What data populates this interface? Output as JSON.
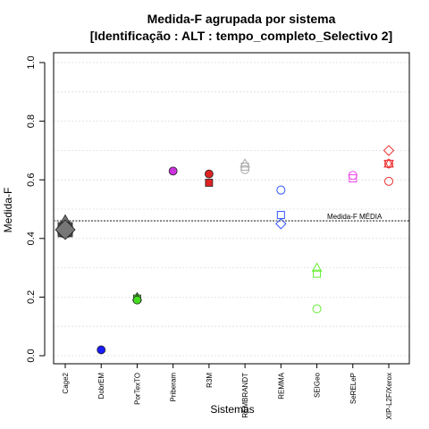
{
  "chart_data": {
    "type": "scatter",
    "title_line1": "Medida-F agrupada por sistema",
    "title_line2": "[Identificação : ALT : tempo_completo_Selectivo 2]",
    "xlabel": "Sistemas",
    "ylabel": "Medida-F",
    "ylim": [
      0,
      1
    ],
    "yticks": [
      "0.0",
      "0.2",
      "0.4",
      "0.6",
      "0.8",
      "1.0"
    ],
    "grid": true,
    "categories": [
      "Cage2",
      "DobrEM",
      "PorTexTO",
      "Priberam",
      "R3M",
      "REMBRANDT",
      "REMMA",
      "SEIGeo",
      "SeRELeP",
      "XIP-L2F/Xerox"
    ],
    "reference_line": {
      "label": "Medida-F MÉDIA",
      "value": 0.46
    },
    "series": [
      {
        "category": "Cage2",
        "color": "#777777",
        "points": [
          {
            "y": 0.45,
            "shape": "triangle",
            "filled": true
          },
          {
            "y": 0.43,
            "shape": "square",
            "filled": true
          },
          {
            "y": 0.43,
            "shape": "circle",
            "filled": true
          },
          {
            "y": 0.43,
            "shape": "diamond",
            "filled": true
          }
        ]
      },
      {
        "category": "DobrEM",
        "color": "#1a1aff",
        "points": [
          {
            "y": 0.02,
            "shape": "circle",
            "filled": true
          }
        ]
      },
      {
        "category": "PorTexTO",
        "color": "#44dd22",
        "points": [
          {
            "y": 0.2,
            "shape": "triangle",
            "filled": true
          },
          {
            "y": 0.195,
            "shape": "square",
            "filled": true
          },
          {
            "y": 0.19,
            "shape": "circle",
            "filled": true
          }
        ]
      },
      {
        "category": "Priberam",
        "color": "#cc33dd",
        "points": [
          {
            "y": 0.63,
            "shape": "circle",
            "filled": true
          }
        ]
      },
      {
        "category": "R3M",
        "color": "#dd2222",
        "points": [
          {
            "y": 0.62,
            "shape": "circle",
            "filled": true
          },
          {
            "y": 0.59,
            "shape": "square",
            "filled": true
          }
        ]
      },
      {
        "category": "REMBRANDT",
        "color": "#aaaaaa",
        "points": [
          {
            "y": 0.655,
            "shape": "triangle",
            "filled": false
          },
          {
            "y": 0.645,
            "shape": "square",
            "filled": false
          },
          {
            "y": 0.635,
            "shape": "circle",
            "filled": false
          }
        ]
      },
      {
        "category": "REMMA",
        "color": "#3355ff",
        "points": [
          {
            "y": 0.565,
            "shape": "circle",
            "filled": false
          },
          {
            "y": 0.48,
            "shape": "square",
            "filled": false
          },
          {
            "y": 0.45,
            "shape": "diamond",
            "filled": false
          }
        ]
      },
      {
        "category": "SEIGeo",
        "color": "#66ee33",
        "points": [
          {
            "y": 0.3,
            "shape": "triangle",
            "filled": false
          },
          {
            "y": 0.28,
            "shape": "square",
            "filled": false
          },
          {
            "y": 0.16,
            "shape": "circle",
            "filled": false
          }
        ]
      },
      {
        "category": "SeRELeP",
        "color": "#ee44ee",
        "points": [
          {
            "y": 0.615,
            "shape": "circle",
            "filled": false
          },
          {
            "y": 0.605,
            "shape": "square",
            "filled": false
          }
        ]
      },
      {
        "category": "XIP-L2F/Xerox",
        "color": "#ee3333",
        "points": [
          {
            "y": 0.7,
            "shape": "diamond",
            "filled": false
          },
          {
            "y": 0.655,
            "shape": "triangle",
            "filled": false
          },
          {
            "y": 0.655,
            "shape": "triangle-down",
            "filled": false
          },
          {
            "y": 0.655,
            "shape": "circle",
            "filled": false
          },
          {
            "y": 0.595,
            "shape": "circle",
            "filled": false
          }
        ]
      }
    ]
  }
}
